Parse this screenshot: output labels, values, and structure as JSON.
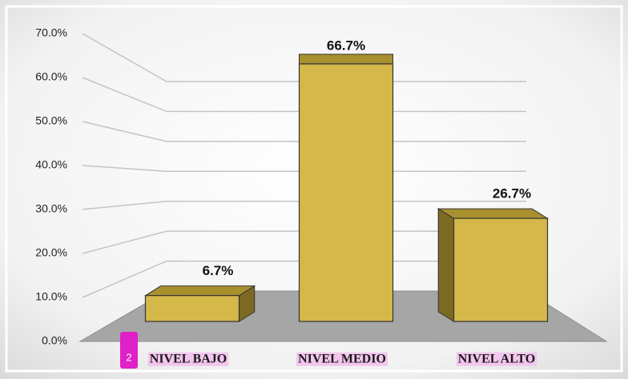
{
  "chart_data": {
    "type": "bar3d",
    "categories": [
      "NIVEL BAJO",
      "NIVEL MEDIO",
      "NIVEL ALTO"
    ],
    "values": [
      6.7,
      66.7,
      26.7
    ],
    "value_labels": [
      "6.7%",
      "66.7%",
      "26.7%"
    ],
    "color": "#d4b84a",
    "ylim": [
      0,
      70
    ],
    "yticks": [
      {
        "value": 0,
        "label": "0.0%"
      },
      {
        "value": 10,
        "label": "10.0%"
      },
      {
        "value": 20,
        "label": "20.0%"
      },
      {
        "value": 30,
        "label": "30.0%"
      },
      {
        "value": 40,
        "label": "40.0%"
      },
      {
        "value": 50,
        "label": "50.0%"
      },
      {
        "value": 60,
        "label": "60.0%"
      },
      {
        "value": 70,
        "label": "70.0%"
      }
    ],
    "grid": true,
    "badge": "2"
  }
}
